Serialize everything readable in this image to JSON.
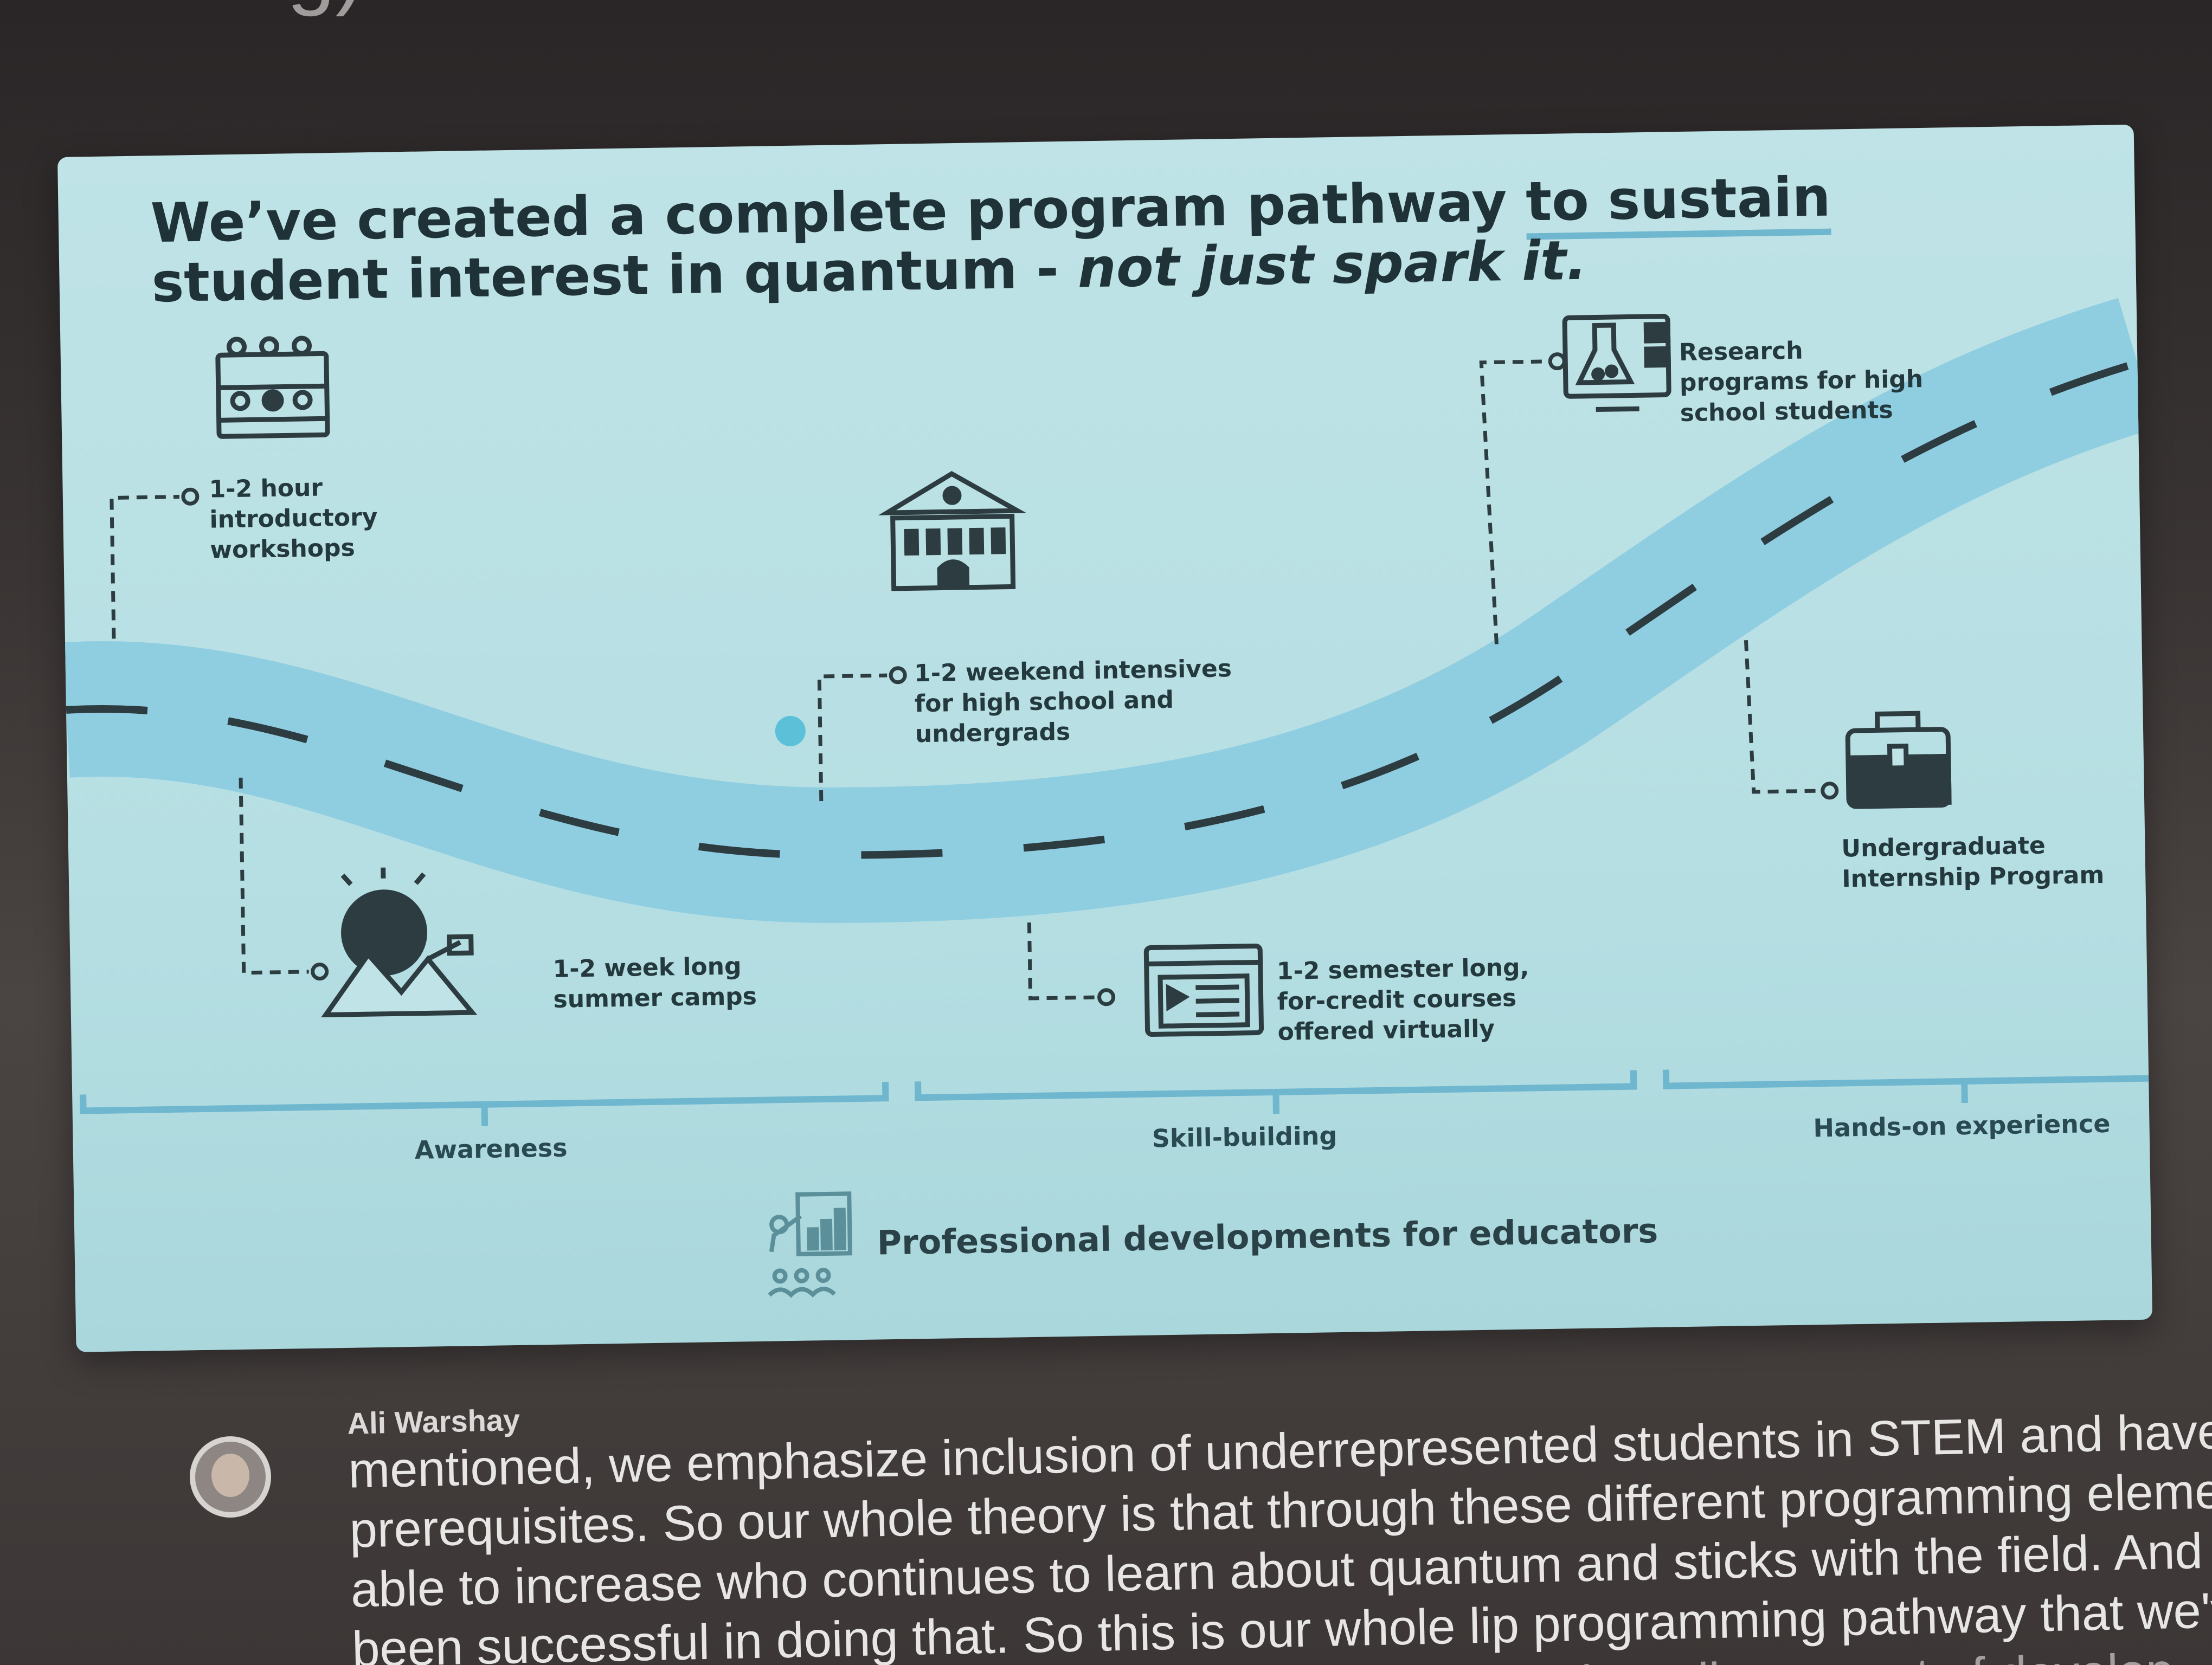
{
  "top_cut_text": "resenting)",
  "slide": {
    "headline_part1": "We’ve created a complete program pathway ",
    "headline_underlined": "to sustain",
    "headline_part2": " student interest in quantum - ",
    "headline_italic": "not just spark it.",
    "steps": [
      {
        "label": "1-2 hour introductory workshops",
        "icon": "classroom-icon"
      },
      {
        "label": "1-2 week long summer camps",
        "icon": "mountain-sun-icon"
      },
      {
        "label": "1-2 weekend intensives for high school and undergrads",
        "icon": "university-building-icon"
      },
      {
        "label": "1-2 semester long, for-credit courses offered virtually",
        "icon": "video-course-icon"
      },
      {
        "label": "Research programs for high school students",
        "icon": "lab-flask-icon"
      },
      {
        "label": "Undergraduate Internship Program",
        "icon": "briefcase-icon"
      }
    ],
    "stages": [
      "Awareness",
      "Skill-building",
      "Hands-on experience"
    ],
    "pd_label": "Professional developments for educators",
    "pd_icon": "educator-presentation-icon",
    "accent_color": "#7cc3d8",
    "road_color": "#8fcde0"
  },
  "transcript": {
    "speaker": "Ali Warshay",
    "lines": [
      "mentioned, we emphasize inclusion of underrepresented students in STEM and have you to know",
      "prerequisites. So our whole theory is that through these different programming elements who are",
      "able to increase who continues to learn about quantum and sticks with the field. And so far we've",
      "been successful in doing that. So this is our whole lip programming pathway that we've created",
      "into all of it but I'll just say broadly, we sort of develop"
    ]
  }
}
